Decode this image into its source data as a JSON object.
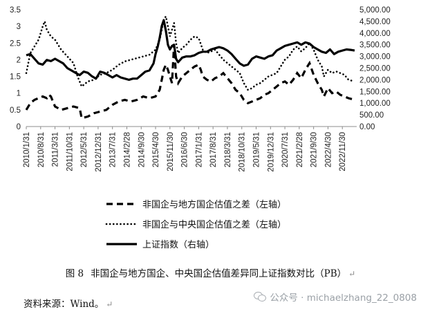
{
  "chart_data": {
    "type": "line",
    "x_ticks": [
      "2010/1/31",
      "2010/8/31",
      "2011/3/31",
      "2011/10/31",
      "2012/5/31",
      "2012/12/31",
      "2013/7/31",
      "2014/2/28",
      "2014/9/30",
      "2015/4/30",
      "2015/11/30",
      "2016/6/30",
      "2017/1/31",
      "2017/8/31",
      "2018/3/31",
      "2018/10/31",
      "2019/5/31",
      "2019/12/31",
      "2020/7/31",
      "2021/2/28",
      "2021/9/30",
      "2022/4/30",
      "2022/11/30"
    ],
    "x_range": [
      "2010/1/31",
      "2023/6/30"
    ],
    "y_left": {
      "ticks": [
        "0",
        "0.5",
        "1",
        "1.5",
        "2",
        "2.5",
        "3",
        "3.5"
      ],
      "range": [
        0,
        3.5
      ]
    },
    "y_right": {
      "ticks": [
        "0.00",
        "500.00",
        "1,000.00",
        "1,500.00",
        "2,000.00",
        "2,500.00",
        "3,000.00",
        "3,500.00",
        "4,000.00",
        "4,500.00",
        "5,000.00"
      ],
      "range": [
        0,
        5000
      ]
    },
    "gridlines": false,
    "legend_position": "bottom",
    "x_months_from": "2010/1",
    "series": [
      {
        "name": "非国企与地方国企估值之差（左轴）",
        "axis": "left",
        "style": "dashed",
        "color": "#000000",
        "points": [
          [
            0,
            0.5
          ],
          [
            2,
            0.7
          ],
          [
            4,
            0.8
          ],
          [
            6,
            0.85
          ],
          [
            8,
            0.9
          ],
          [
            10,
            0.85
          ],
          [
            11,
            0.95
          ],
          [
            12,
            0.9
          ],
          [
            14,
            0.6
          ],
          [
            17,
            0.5
          ],
          [
            20,
            0.55
          ],
          [
            23,
            0.6
          ],
          [
            26,
            0.55
          ],
          [
            27,
            0.25
          ],
          [
            30,
            0.3
          ],
          [
            33,
            0.4
          ],
          [
            36,
            0.45
          ],
          [
            39,
            0.5
          ],
          [
            42,
            0.65
          ],
          [
            45,
            0.75
          ],
          [
            48,
            0.8
          ],
          [
            51,
            0.75
          ],
          [
            54,
            0.8
          ],
          [
            57,
            0.9
          ],
          [
            60,
            0.85
          ],
          [
            63,
            0.9
          ],
          [
            65,
            1.1
          ],
          [
            66,
            1.4
          ],
          [
            67,
            1.7
          ],
          [
            68,
            1.85
          ],
          [
            69,
            1.7
          ],
          [
            70,
            1.5
          ],
          [
            71,
            1.3
          ],
          [
            72,
            2.45
          ],
          [
            73,
            1.5
          ],
          [
            74,
            1.3
          ],
          [
            76,
            1.5
          ],
          [
            78,
            1.6
          ],
          [
            80,
            1.7
          ],
          [
            82,
            1.8
          ],
          [
            84,
            1.85
          ],
          [
            85,
            1.7
          ],
          [
            86,
            1.5
          ],
          [
            88,
            1.4
          ],
          [
            90,
            1.35
          ],
          [
            92,
            1.45
          ],
          [
            94,
            1.5
          ],
          [
            96,
            1.6
          ],
          [
            98,
            1.45
          ],
          [
            100,
            1.3
          ],
          [
            102,
            1.1
          ],
          [
            104,
            1.0
          ],
          [
            106,
            0.8
          ],
          [
            108,
            0.7
          ],
          [
            110,
            0.75
          ],
          [
            112,
            0.8
          ],
          [
            114,
            0.85
          ],
          [
            116,
            0.95
          ],
          [
            118,
            1.0
          ],
          [
            120,
            1.1
          ],
          [
            122,
            1.2
          ],
          [
            124,
            1.3
          ],
          [
            126,
            1.35
          ],
          [
            128,
            1.25
          ],
          [
            130,
            1.4
          ],
          [
            132,
            1.6
          ],
          [
            134,
            1.45
          ],
          [
            136,
            1.7
          ],
          [
            138,
            1.9
          ],
          [
            140,
            1.55
          ],
          [
            142,
            1.3
          ],
          [
            144,
            1.1
          ],
          [
            145,
            0.9
          ],
          [
            147,
            1.15
          ],
          [
            149,
            1.0
          ],
          [
            151,
            1.05
          ],
          [
            153,
            0.95
          ],
          [
            155,
            0.9
          ],
          [
            157,
            0.85
          ],
          [
            160,
            0.8
          ]
        ]
      },
      {
        "name": "非国企与中央国企估值之差（左轴）",
        "axis": "left",
        "style": "dotted",
        "color": "#000000",
        "points": [
          [
            0,
            1.6
          ],
          [
            2,
            2.2
          ],
          [
            4,
            2.4
          ],
          [
            6,
            2.6
          ],
          [
            8,
            3.0
          ],
          [
            9,
            3.15
          ],
          [
            10,
            2.9
          ],
          [
            12,
            2.7
          ],
          [
            14,
            2.6
          ],
          [
            17,
            2.3
          ],
          [
            20,
            2.1
          ],
          [
            23,
            1.9
          ],
          [
            25,
            1.5
          ],
          [
            27,
            1.2
          ],
          [
            30,
            1.35
          ],
          [
            33,
            1.4
          ],
          [
            36,
            1.55
          ],
          [
            39,
            1.6
          ],
          [
            42,
            1.7
          ],
          [
            45,
            1.85
          ],
          [
            48,
            1.95
          ],
          [
            51,
            2.0
          ],
          [
            54,
            2.05
          ],
          [
            57,
            2.1
          ],
          [
            60,
            2.15
          ],
          [
            63,
            2.3
          ],
          [
            65,
            2.6
          ],
          [
            66,
            2.9
          ],
          [
            67,
            3.2
          ],
          [
            68,
            3.3
          ],
          [
            69,
            3.0
          ],
          [
            70,
            2.7
          ],
          [
            71,
            2.9
          ],
          [
            72,
            3.1
          ],
          [
            73,
            2.5
          ],
          [
            74,
            2.2
          ],
          [
            76,
            2.35
          ],
          [
            78,
            2.45
          ],
          [
            80,
            2.6
          ],
          [
            82,
            2.7
          ],
          [
            84,
            2.65
          ],
          [
            86,
            2.3
          ],
          [
            88,
            2.2
          ],
          [
            90,
            2.25
          ],
          [
            92,
            2.3
          ],
          [
            94,
            2.15
          ],
          [
            96,
            2.0
          ],
          [
            98,
            1.9
          ],
          [
            100,
            1.8
          ],
          [
            102,
            1.7
          ],
          [
            104,
            1.6
          ],
          [
            106,
            1.3
          ],
          [
            108,
            1.1
          ],
          [
            110,
            1.15
          ],
          [
            112,
            1.25
          ],
          [
            114,
            1.3
          ],
          [
            116,
            1.4
          ],
          [
            118,
            1.5
          ],
          [
            120,
            1.55
          ],
          [
            122,
            1.6
          ],
          [
            124,
            1.8
          ],
          [
            126,
            2.0
          ],
          [
            128,
            2.1
          ],
          [
            130,
            2.3
          ],
          [
            132,
            2.4
          ],
          [
            134,
            2.25
          ],
          [
            136,
            2.35
          ],
          [
            138,
            2.5
          ],
          [
            140,
            2.3
          ],
          [
            142,
            2.0
          ],
          [
            144,
            1.8
          ],
          [
            145,
            1.5
          ],
          [
            147,
            1.7
          ],
          [
            149,
            1.6
          ],
          [
            151,
            1.65
          ],
          [
            153,
            1.6
          ],
          [
            155,
            1.55
          ],
          [
            157,
            1.4
          ],
          [
            160,
            1.35
          ]
        ]
      },
      {
        "name": "上证指数（右轴）",
        "axis": "right",
        "style": "solid",
        "color": "#000000",
        "points": [
          [
            0,
            3050
          ],
          [
            2,
            3100
          ],
          [
            4,
            2900
          ],
          [
            6,
            2700
          ],
          [
            8,
            2650
          ],
          [
            10,
            2850
          ],
          [
            12,
            2800
          ],
          [
            14,
            2900
          ],
          [
            16,
            2800
          ],
          [
            18,
            2700
          ],
          [
            20,
            2500
          ],
          [
            22,
            2400
          ],
          [
            24,
            2300
          ],
          [
            26,
            2200
          ],
          [
            28,
            2350
          ],
          [
            30,
            2300
          ],
          [
            32,
            2150
          ],
          [
            34,
            2050
          ],
          [
            36,
            2350
          ],
          [
            38,
            2300
          ],
          [
            40,
            2200
          ],
          [
            42,
            2100
          ],
          [
            44,
            2200
          ],
          [
            46,
            2100
          ],
          [
            48,
            2050
          ],
          [
            50,
            2000
          ],
          [
            52,
            2050
          ],
          [
            54,
            2050
          ],
          [
            56,
            2200
          ],
          [
            58,
            2350
          ],
          [
            60,
            2400
          ],
          [
            62,
            2700
          ],
          [
            63,
            3100
          ],
          [
            64,
            3400
          ],
          [
            65,
            3800
          ],
          [
            66,
            4300
          ],
          [
            67,
            4550
          ],
          [
            68,
            4100
          ],
          [
            69,
            3500
          ],
          [
            70,
            3300
          ],
          [
            71,
            3450
          ],
          [
            72,
            3500
          ],
          [
            73,
            2900
          ],
          [
            74,
            2750
          ],
          [
            76,
            2950
          ],
          [
            78,
            3000
          ],
          [
            80,
            3000
          ],
          [
            82,
            3050
          ],
          [
            84,
            3150
          ],
          [
            86,
            3200
          ],
          [
            88,
            3200
          ],
          [
            90,
            3300
          ],
          [
            92,
            3350
          ],
          [
            94,
            3400
          ],
          [
            96,
            3350
          ],
          [
            98,
            3250
          ],
          [
            100,
            3100
          ],
          [
            102,
            2900
          ],
          [
            104,
            2700
          ],
          [
            106,
            2600
          ],
          [
            108,
            2650
          ],
          [
            110,
            2900
          ],
          [
            112,
            3000
          ],
          [
            114,
            2950
          ],
          [
            116,
            2900
          ],
          [
            118,
            3000
          ],
          [
            120,
            3050
          ],
          [
            122,
            3250
          ],
          [
            124,
            3350
          ],
          [
            126,
            3450
          ],
          [
            128,
            3500
          ],
          [
            130,
            3550
          ],
          [
            132,
            3600
          ],
          [
            134,
            3500
          ],
          [
            136,
            3600
          ],
          [
            138,
            3550
          ],
          [
            140,
            3400
          ],
          [
            142,
            3300
          ],
          [
            144,
            3200
          ],
          [
            146,
            3150
          ],
          [
            148,
            3300
          ],
          [
            150,
            3100
          ],
          [
            152,
            3200
          ],
          [
            154,
            3250
          ],
          [
            156,
            3300
          ],
          [
            158,
            3280
          ],
          [
            160,
            3250
          ]
        ]
      }
    ]
  },
  "caption": {
    "number": "图 8",
    "text": "非国企与地方国企、中央国企估值差异同上证指数对比（PB）",
    "mark": "↵"
  },
  "source": {
    "text": "资料来源：Wind。",
    "mark": "↵"
  },
  "watermark": {
    "icon": "wechat-icon",
    "text": "公众号 · michaelzhang_22_0808"
  }
}
